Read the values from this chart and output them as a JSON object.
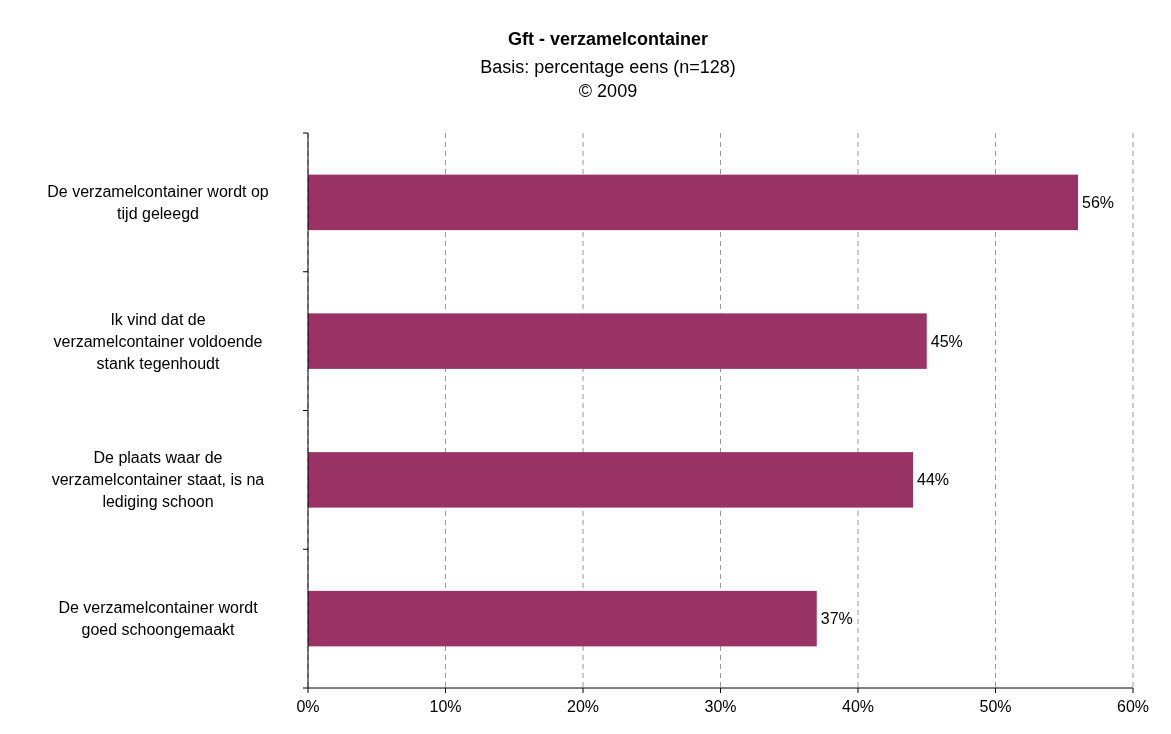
{
  "chart_data": {
    "type": "bar",
    "orientation": "horizontal",
    "title": "Gft - verzamelcontainer",
    "subtitle": "Basis: percentage eens (n=128)\n© 2009",
    "categories": [
      "De verzamelcontainer wordt op\ntijd geleegd",
      "Ik vind dat de\nverzamelcontainer voldoende\nstank tegenhoudt",
      "De plaats waar de\nverzamelcontainer staat, is na\nlediging schoon",
      "De verzamelcontainer wordt\ngoed schoongemaakt"
    ],
    "values": [
      56,
      45,
      44,
      37
    ],
    "value_labels": [
      "56%",
      "45%",
      "44%",
      "37%"
    ],
    "color": "#993366",
    "xlim": [
      0,
      60
    ],
    "xticks": [
      {
        "value": 0,
        "label": "0%"
      },
      {
        "value": 10,
        "label": "10%"
      },
      {
        "value": 20,
        "label": "20%"
      },
      {
        "value": 30,
        "label": "30%"
      },
      {
        "value": 40,
        "label": "40%"
      },
      {
        "value": 50,
        "label": "50%"
      },
      {
        "value": 60,
        "label": "60%"
      }
    ],
    "grid": "x"
  }
}
